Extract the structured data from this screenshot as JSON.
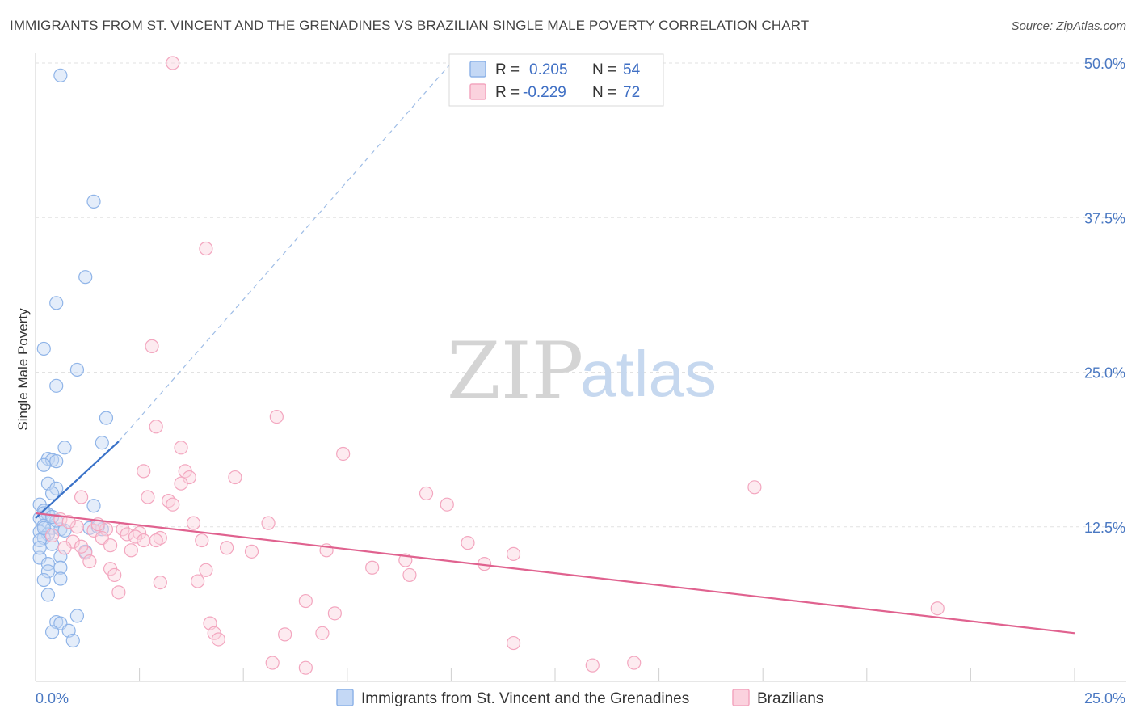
{
  "header": {
    "title": "IMMIGRANTS FROM ST. VINCENT AND THE GRENADINES VS BRAZILIAN SINGLE MALE POVERTY CORRELATION CHART",
    "source": "Source: ZipAtlas.com"
  },
  "watermark": {
    "zip": "ZIP",
    "atlas": "atlas"
  },
  "legend": {
    "r_label": "R =",
    "n_label": "N =",
    "rows": [
      {
        "r": "0.205",
        "n": "54",
        "color": "#8fb4e8"
      },
      {
        "r": "-0.229",
        "n": "72",
        "color": "#f3a6bf"
      }
    ]
  },
  "chart_data": {
    "type": "scatter",
    "title": "IMMIGRANTS FROM ST. VINCENT AND THE GRENADINES VS BRAZILIAN SINGLE MALE POVERTY CORRELATION CHART",
    "xlabel": "",
    "ylabel": "Single Male Poverty",
    "xlim": [
      0,
      25
    ],
    "ylim": [
      0,
      50
    ],
    "x_tick_labels": [
      "0.0%",
      "25.0%"
    ],
    "y_ticks": [
      12.5,
      25.0,
      37.5,
      50.0
    ],
    "y_tick_labels": [
      "12.5%",
      "25.0%",
      "37.5%",
      "50.0%"
    ],
    "grid": true,
    "legend_position": "top-center",
    "series": [
      {
        "name": "Immigrants from St. Vincent and the Grenadines",
        "color": "#8fb4e8",
        "line_color": "#3a72c8",
        "trend": {
          "x": [
            0.0,
            2.0
          ],
          "y": [
            13.2,
            19.4
          ],
          "x_ext": 10.0,
          "y_ext": 50.0
        },
        "points": [
          [
            0.6,
            49.0
          ],
          [
            1.4,
            38.8
          ],
          [
            1.2,
            32.7
          ],
          [
            0.5,
            30.6
          ],
          [
            0.2,
            26.9
          ],
          [
            1.0,
            25.2
          ],
          [
            0.5,
            23.9
          ],
          [
            1.7,
            21.3
          ],
          [
            1.6,
            19.3
          ],
          [
            0.7,
            18.9
          ],
          [
            0.3,
            18.0
          ],
          [
            0.4,
            17.9
          ],
          [
            0.5,
            17.8
          ],
          [
            0.2,
            17.5
          ],
          [
            0.3,
            16.0
          ],
          [
            0.5,
            15.6
          ],
          [
            0.4,
            15.2
          ],
          [
            1.4,
            14.2
          ],
          [
            0.1,
            14.3
          ],
          [
            0.2,
            13.8
          ],
          [
            0.2,
            13.6
          ],
          [
            0.3,
            13.5
          ],
          [
            0.1,
            13.2
          ],
          [
            0.2,
            12.6
          ],
          [
            0.4,
            12.4
          ],
          [
            0.6,
            12.3
          ],
          [
            1.3,
            12.4
          ],
          [
            1.6,
            12.3
          ],
          [
            0.1,
            12.1
          ],
          [
            0.3,
            11.9
          ],
          [
            0.2,
            11.6
          ],
          [
            0.1,
            11.4
          ],
          [
            0.4,
            11.1
          ],
          [
            1.2,
            10.5
          ],
          [
            0.1,
            10.0
          ],
          [
            0.6,
            10.1
          ],
          [
            0.3,
            9.5
          ],
          [
            0.6,
            9.2
          ],
          [
            0.3,
            8.9
          ],
          [
            0.6,
            8.3
          ],
          [
            0.2,
            8.2
          ],
          [
            0.3,
            7.0
          ],
          [
            1.0,
            5.3
          ],
          [
            0.5,
            4.8
          ],
          [
            0.6,
            4.7
          ],
          [
            0.8,
            4.1
          ],
          [
            0.4,
            4.0
          ],
          [
            0.9,
            3.3
          ],
          [
            0.2,
            12.4
          ],
          [
            0.5,
            13.0
          ],
          [
            0.7,
            12.2
          ],
          [
            0.1,
            10.8
          ],
          [
            0.4,
            13.3
          ],
          [
            1.5,
            12.5
          ]
        ]
      },
      {
        "name": "Brazilians",
        "color": "#f3a6bf",
        "line_color": "#e0628f",
        "trend": {
          "x": [
            0.0,
            25.0
          ],
          "y": [
            13.6,
            3.9
          ]
        },
        "points": [
          [
            3.3,
            50.0
          ],
          [
            4.1,
            35.0
          ],
          [
            2.8,
            27.1
          ],
          [
            5.8,
            21.4
          ],
          [
            2.9,
            20.6
          ],
          [
            3.5,
            18.9
          ],
          [
            7.4,
            18.4
          ],
          [
            2.6,
            17.0
          ],
          [
            3.6,
            17.0
          ],
          [
            3.7,
            16.5
          ],
          [
            4.8,
            16.5
          ],
          [
            3.5,
            16.0
          ],
          [
            17.3,
            15.7
          ],
          [
            2.7,
            14.9
          ],
          [
            3.2,
            14.6
          ],
          [
            3.3,
            14.3
          ],
          [
            9.4,
            15.2
          ],
          [
            9.9,
            14.3
          ],
          [
            1.1,
            14.9
          ],
          [
            3.8,
            12.8
          ],
          [
            5.6,
            12.8
          ],
          [
            0.6,
            13.1
          ],
          [
            1.0,
            12.5
          ],
          [
            2.1,
            12.3
          ],
          [
            1.7,
            12.3
          ],
          [
            1.4,
            12.2
          ],
          [
            2.5,
            12.0
          ],
          [
            2.2,
            11.9
          ],
          [
            2.4,
            11.7
          ],
          [
            3.0,
            11.6
          ],
          [
            1.6,
            11.6
          ],
          [
            2.9,
            11.4
          ],
          [
            0.9,
            11.3
          ],
          [
            4.0,
            11.4
          ],
          [
            10.4,
            11.2
          ],
          [
            4.6,
            10.8
          ],
          [
            5.2,
            10.5
          ],
          [
            7.0,
            10.6
          ],
          [
            11.5,
            10.3
          ],
          [
            1.8,
            11.0
          ],
          [
            2.3,
            10.6
          ],
          [
            1.2,
            10.4
          ],
          [
            0.7,
            10.8
          ],
          [
            1.3,
            9.7
          ],
          [
            8.9,
            9.8
          ],
          [
            10.8,
            9.5
          ],
          [
            8.1,
            9.2
          ],
          [
            4.1,
            9.0
          ],
          [
            1.8,
            9.1
          ],
          [
            1.9,
            8.6
          ],
          [
            9.0,
            8.6
          ],
          [
            3.0,
            8.0
          ],
          [
            3.9,
            8.1
          ],
          [
            2.0,
            7.2
          ],
          [
            6.5,
            6.5
          ],
          [
            21.7,
            5.9
          ],
          [
            7.2,
            5.5
          ],
          [
            4.2,
            4.7
          ],
          [
            4.3,
            3.9
          ],
          [
            6.0,
            3.8
          ],
          [
            6.9,
            3.9
          ],
          [
            4.4,
            3.4
          ],
          [
            11.5,
            3.1
          ],
          [
            5.7,
            1.5
          ],
          [
            6.5,
            1.1
          ],
          [
            13.4,
            1.3
          ],
          [
            14.4,
            1.5
          ],
          [
            1.1,
            10.9
          ],
          [
            0.4,
            11.8
          ],
          [
            1.5,
            12.7
          ],
          [
            2.6,
            11.4
          ],
          [
            0.8,
            12.9
          ]
        ]
      }
    ]
  }
}
